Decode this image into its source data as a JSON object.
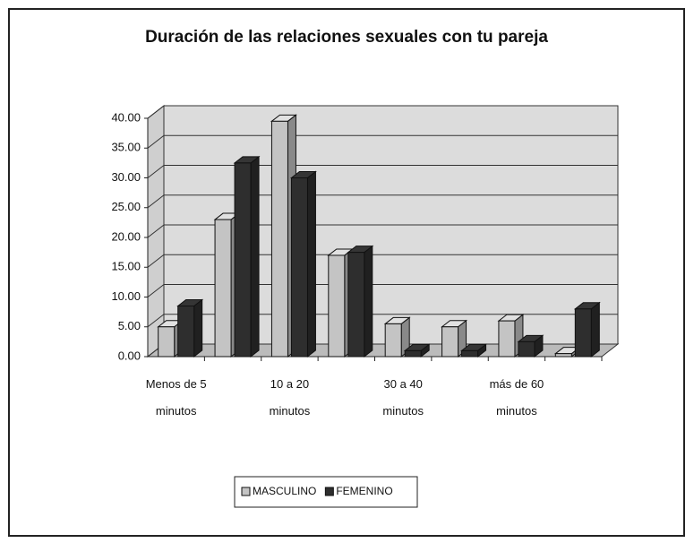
{
  "chart_data": {
    "type": "bar3d",
    "title": "Duración de las relaciones sexuales con tu pareja",
    "categories": [
      "Menos de 5 minutos",
      null,
      "10 a 20 minutos",
      null,
      "30 a 40 minutos",
      null,
      "más de 60 minutos",
      null
    ],
    "series": [
      {
        "name": "MASCULINO",
        "color": "#c4c4c4",
        "values": [
          5.0,
          23.0,
          39.5,
          17.0,
          5.5,
          5.0,
          6.0,
          0.5
        ]
      },
      {
        "name": "FEMENINO",
        "color": "#2e2e2e",
        "values": [
          8.5,
          32.5,
          30.0,
          17.5,
          1.0,
          1.0,
          2.5,
          8.0
        ]
      }
    ],
    "ylim": [
      0,
      40
    ],
    "yticks": [
      {
        "value": 0,
        "label": "0.00"
      },
      {
        "value": 5,
        "label": "5.00"
      },
      {
        "value": 10,
        "label": "10.00"
      },
      {
        "value": 15,
        "label": "15.00"
      },
      {
        "value": 20,
        "label": "20.00"
      },
      {
        "value": 25,
        "label": "25.00"
      },
      {
        "value": 30,
        "label": "30.00"
      },
      {
        "value": 35,
        "label": "35.00"
      },
      {
        "value": 40,
        "label": "40.00"
      }
    ],
    "grid": true,
    "legend": "bottom"
  }
}
